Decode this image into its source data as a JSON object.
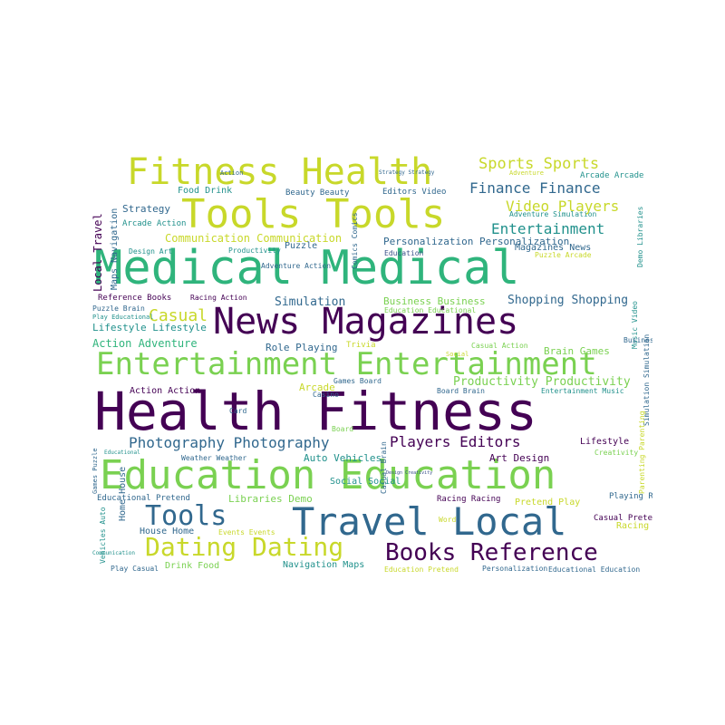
{
  "palette": {
    "purple": "#440154",
    "indigo": "#3b528b",
    "teal": "#21918c",
    "green": "#2fb47c",
    "lime": "#7ad151",
    "yellow": "#c8d82a",
    "dark": "#31688e"
  },
  "words": [
    "Health Fitness",
    "Medical Medical",
    "Education Education",
    "News Magazines",
    "Entertainment Entertainment",
    "Tools Tools",
    "Fitness Health",
    "Travel Local",
    "Dating Dating",
    "Books Reference",
    "Tools",
    "Sports Sports",
    "Finance Finance",
    "Video Players",
    "Entertainment",
    "Photography Photography",
    "Players Editors",
    "Shopping Shopping",
    "Productivity Productivity",
    "Casual",
    "Simulation",
    "Communication Communication",
    "Personalization Personalization",
    "Action Adventure",
    "Business Business",
    "Role Playing",
    "Brain Games",
    "Art Design",
    "Auto Vehicles",
    "Local Travel",
    "Maps Navigation",
    "Strategy",
    "Food Drink",
    "Beauty Beauty",
    "Editors Video",
    "Arcade Arcade",
    "Adventure Simulation",
    "Arcade Action",
    "Design Art",
    "Productivity",
    "Puzzle",
    "Magazines News",
    "Comics Comics",
    "Education",
    "Puzzle Arcade",
    "Demo Libraries",
    "Reference Books",
    "Racing Action",
    "Education Educational",
    "Puzzle Brain",
    "Play Educational",
    "Lifestyle Lifestyle",
    "Trivia",
    "Casual Action",
    "Music Video",
    "Business",
    "Games Board",
    "Arcade",
    "Action Action",
    "Casino",
    "Board Brain",
    "Entertainment Music",
    "Card",
    "Board",
    "Simulation Simulation",
    "Lifestyle",
    "Creativity",
    "Weather Weather",
    "Educational",
    "Games Puzzle",
    "Casual Brain",
    "Design Creativity",
    "Parenting Parenting",
    "Educational Pretend",
    "Libraries Demo",
    "Social Social",
    "Racing Racing",
    "Pretend Play",
    "Playing Role",
    "Home House",
    "House Home",
    "Vehicles Auto",
    "Events Events",
    "Word",
    "Casual Pretend",
    "Racing",
    "Play Casual",
    "Drink Food",
    "Navigation Maps",
    "Education Pretend",
    "Personalization",
    "Educational Education",
    "Adventure",
    "Action",
    "Strategy Strategy",
    "Adventure Action",
    "Social",
    "Communication"
  ]
}
